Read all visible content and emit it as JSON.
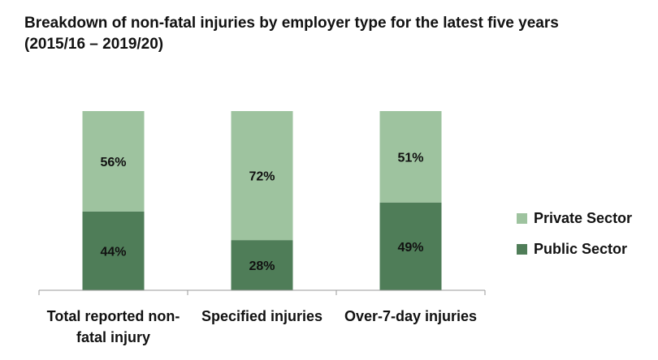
{
  "title": {
    "line1": "Breakdown of non-fatal injuries by employer type for the latest five years",
    "line2": "(2015/16 – 2019/20)"
  },
  "chart_data": {
    "type": "bar",
    "stacked": true,
    "percent": true,
    "title": "Breakdown of non-fatal injuries by employer type for the latest five years (2015/16 – 2019/20)",
    "categories": [
      "Total reported non-fatal injury",
      "Specified injuries",
      "Over-7-day injuries"
    ],
    "category_label_lines": [
      [
        "Total reported non-",
        "fatal injury"
      ],
      [
        "Specified injuries"
      ],
      [
        "Over-7-day injuries"
      ]
    ],
    "series": [
      {
        "name": "Public Sector",
        "values": [
          44,
          28,
          49
        ],
        "labels": [
          "44%",
          "28%",
          "49%"
        ],
        "color": "#4f7d58"
      },
      {
        "name": "Private Sector",
        "values": [
          56,
          72,
          51
        ],
        "labels": [
          "56%",
          "72%",
          "51%"
        ],
        "color": "#9ec39f"
      }
    ],
    "ylim": [
      0,
      100
    ],
    "grid": false,
    "legend_position": "right"
  },
  "legend": {
    "items": [
      {
        "label": "Private Sector",
        "color": "#9ec39f"
      },
      {
        "label": "Public Sector",
        "color": "#4f7d58"
      }
    ]
  }
}
